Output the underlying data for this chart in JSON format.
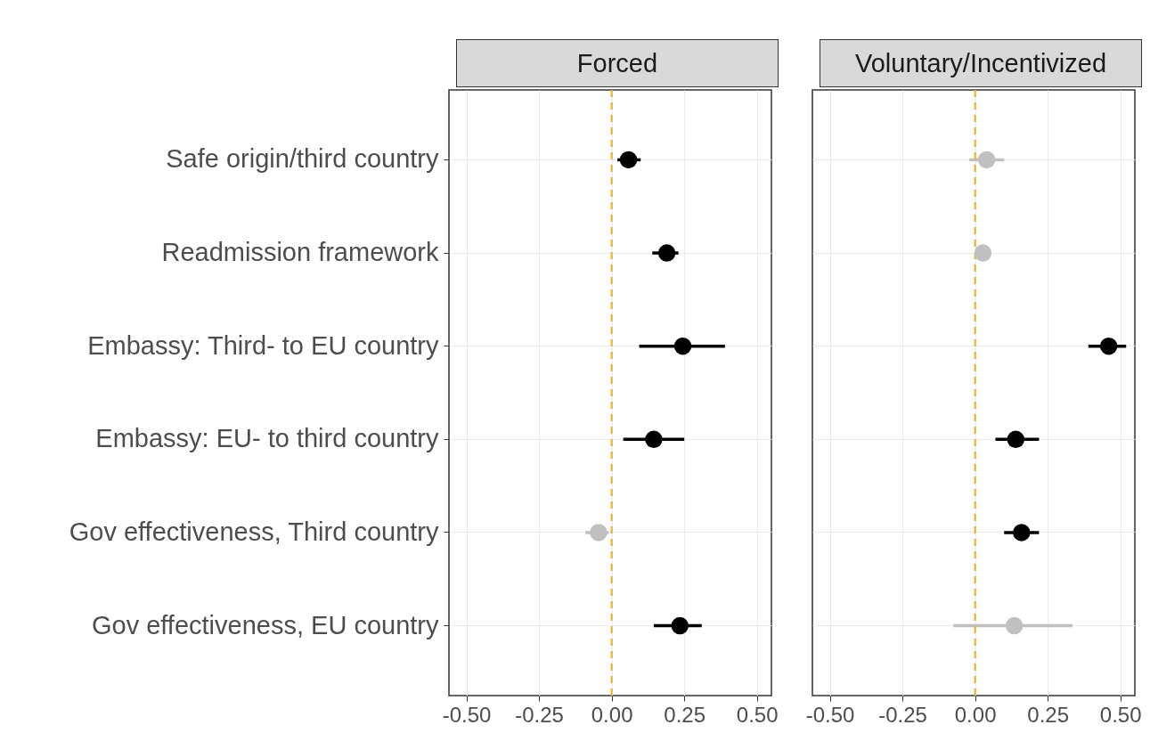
{
  "chart_data": [
    {
      "type": "scatter",
      "title": "Forced",
      "orientation": "horizontal",
      "categories": [
        "Safe origin/third country",
        "Readmission framework",
        "Embassy: Third- to EU country",
        "Embassy: EU- to third country",
        "Gov effectiveness, Third country",
        "Gov effectiveness, EU country"
      ],
      "values": [
        0.058,
        0.19,
        0.245,
        0.145,
        -0.045,
        0.235
      ],
      "errors": [
        [
          0.02,
          0.1
        ],
        [
          0.14,
          0.23
        ],
        [
          0.095,
          0.39
        ],
        [
          0.04,
          0.25
        ],
        [
          -0.09,
          -0.01
        ],
        [
          0.145,
          0.31
        ]
      ],
      "colors": [
        "#000000",
        "#000000",
        "#000000",
        "#000000",
        "#c0c0c0",
        "#000000"
      ],
      "marker": "circle",
      "xlim": [
        -0.56,
        0.55
      ],
      "xticks": [
        {
          "value": -0.5,
          "label": "-0.50"
        },
        {
          "value": -0.25,
          "label": "-0.25"
        },
        {
          "value": 0,
          "label": "0.00"
        },
        {
          "value": 0.25,
          "label": "0.25"
        },
        {
          "value": 0.5,
          "label": "0.50"
        }
      ],
      "ref_lines": [
        {
          "axis": "x",
          "value": 0,
          "color": "#e8b020",
          "line_style": "dashed"
        }
      ],
      "grid": true
    },
    {
      "type": "scatter",
      "title": "Voluntary/Incentivized",
      "orientation": "horizontal",
      "categories": [
        null,
        null,
        null,
        null,
        null,
        null
      ],
      "values": [
        0.04,
        0.027,
        0.46,
        0.14,
        0.16,
        0.135
      ],
      "errors": [
        [
          -0.02,
          0.1
        ],
        [
          0,
          0.055
        ],
        [
          0.39,
          0.52
        ],
        [
          0.07,
          0.22
        ],
        [
          0.1,
          0.22
        ],
        [
          -0.075,
          0.335
        ]
      ],
      "colors": [
        "#c0c0c0",
        "#c0c0c0",
        "#000000",
        "#000000",
        "#000000",
        "#c0c0c0"
      ],
      "marker": "circle",
      "xlim": [
        -0.56,
        0.55
      ],
      "xticks": [
        {
          "value": -0.5,
          "label": "-0.50"
        },
        {
          "value": -0.25,
          "label": "-0.25"
        },
        {
          "value": 0,
          "label": "0.00"
        },
        {
          "value": 0.25,
          "label": "0.25"
        },
        {
          "value": 0.5,
          "label": "0.50"
        }
      ],
      "ref_lines": [
        {
          "axis": "x",
          "value": 0,
          "color": "#e8b020",
          "line_style": "dashed"
        }
      ],
      "grid": true,
      "tick_labels": "x"
    }
  ]
}
